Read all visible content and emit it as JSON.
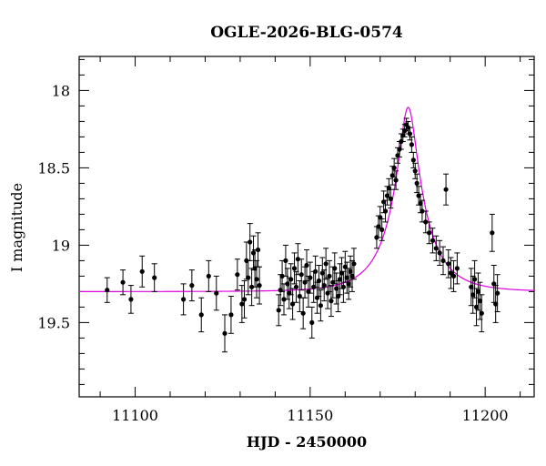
{
  "chart_data": {
    "type": "scatter",
    "title": "OGLE-2026-BLG-0574",
    "xlabel": "HJD - 2450000",
    "ylabel": "I magnitude",
    "xlim": [
      11084,
      11214
    ],
    "ylim": [
      19.98,
      17.78
    ],
    "y_inverted": true,
    "x_ticks": [
      11100,
      11150,
      11200
    ],
    "y_ticks": [
      18,
      18.5,
      19,
      19.5
    ],
    "grid": false,
    "colors": {
      "points": "#000000",
      "model": "#e000e0"
    },
    "model": {
      "type": "line",
      "t0": 11178.0,
      "tE": 11.0,
      "u0": 0.22,
      "baseline": 19.3,
      "blend_fraction": 0.55
    },
    "series": [
      {
        "type": "scatter_errorbar",
        "x": [
          11092.0,
          11096.5,
          11098.8,
          11102.0,
          11105.5,
          11113.8,
          11116.2,
          11118.9,
          11121.0,
          11123.2,
          11125.6,
          11127.4,
          11129.2,
          11130.5,
          11131.2,
          11131.8,
          11132.3,
          11132.8,
          11133.3,
          11133.8,
          11134.2,
          11134.7,
          11135.1,
          11135.5,
          11141.0,
          11141.5,
          11142.0,
          11142.5,
          11143.0,
          11143.5,
          11144.0,
          11144.5,
          11145.0,
          11145.5,
          11146.0,
          11146.5,
          11147.0,
          11147.5,
          11148.0,
          11148.5,
          11149.0,
          11149.5,
          11150.0,
          11150.5,
          11151.0,
          11151.5,
          11152.0,
          11152.5,
          11153.0,
          11153.5,
          11154.0,
          11154.5,
          11155.0,
          11155.5,
          11156.0,
          11156.5,
          11157.0,
          11157.5,
          11158.0,
          11158.5,
          11159.0,
          11159.5,
          11160.0,
          11160.5,
          11161.0,
          11161.5,
          11162.0,
          11162.5,
          11169.0,
          11169.5,
          11170.0,
          11170.5,
          11171.0,
          11171.5,
          11172.0,
          11172.5,
          11173.0,
          11173.5,
          11174.0,
          11174.5,
          11175.0,
          11175.5,
          11176.0,
          11176.5,
          11177.0,
          11177.5,
          11178.0,
          11178.5,
          11179.0,
          11179.5,
          11180.0,
          11180.5,
          11181.0,
          11181.5,
          11182.0,
          11183.0,
          11184.0,
          11185.0,
          11186.0,
          11187.0,
          11188.0,
          11188.8,
          11189.5,
          11190.2,
          11191.0,
          11192.0,
          11196.0,
          11196.5,
          11197.0,
          11197.5,
          11198.0,
          11198.5,
          11199.0,
          11202.0,
          11202.5,
          11203.0,
          11203.5
        ],
        "y": [
          19.29,
          19.24,
          19.35,
          19.17,
          19.21,
          19.35,
          19.26,
          19.45,
          19.2,
          19.31,
          19.57,
          19.45,
          19.19,
          19.38,
          19.35,
          19.1,
          19.21,
          18.98,
          19.27,
          19.05,
          19.15,
          19.22,
          19.03,
          19.26,
          19.42,
          19.29,
          19.2,
          19.35,
          19.1,
          19.25,
          19.31,
          19.22,
          19.38,
          19.15,
          19.27,
          19.09,
          19.33,
          19.19,
          19.44,
          19.24,
          19.13,
          19.3,
          19.21,
          19.5,
          19.27,
          19.17,
          19.34,
          19.23,
          19.39,
          19.18,
          19.26,
          19.12,
          19.31,
          19.2,
          19.36,
          19.24,
          19.15,
          19.28,
          19.33,
          19.22,
          19.18,
          19.27,
          19.14,
          19.21,
          19.25,
          19.17,
          19.2,
          19.12,
          18.95,
          18.88,
          18.82,
          18.9,
          18.72,
          18.78,
          18.68,
          18.63,
          18.7,
          18.55,
          18.5,
          18.58,
          18.42,
          18.38,
          18.33,
          18.29,
          18.26,
          18.22,
          18.24,
          18.28,
          18.35,
          18.45,
          18.52,
          18.6,
          18.68,
          18.73,
          18.78,
          18.85,
          18.92,
          18.97,
          19.02,
          19.05,
          19.1,
          18.64,
          19.12,
          19.18,
          19.2,
          19.15,
          19.27,
          19.32,
          19.22,
          19.4,
          19.3,
          19.36,
          19.44,
          18.92,
          19.25,
          19.38,
          19.31
        ],
        "err": [
          0.08,
          0.08,
          0.09,
          0.1,
          0.09,
          0.1,
          0.1,
          0.11,
          0.1,
          0.11,
          0.12,
          0.12,
          0.1,
          0.12,
          0.12,
          0.12,
          0.11,
          0.12,
          0.12,
          0.11,
          0.12,
          0.12,
          0.11,
          0.12,
          0.1,
          0.1,
          0.1,
          0.1,
          0.1,
          0.1,
          0.1,
          0.1,
          0.1,
          0.1,
          0.1,
          0.1,
          0.1,
          0.1,
          0.1,
          0.1,
          0.1,
          0.1,
          0.1,
          0.1,
          0.1,
          0.1,
          0.1,
          0.1,
          0.1,
          0.1,
          0.1,
          0.1,
          0.1,
          0.1,
          0.1,
          0.1,
          0.1,
          0.1,
          0.1,
          0.1,
          0.1,
          0.1,
          0.1,
          0.1,
          0.1,
          0.1,
          0.1,
          0.1,
          0.07,
          0.07,
          0.07,
          0.07,
          0.07,
          0.07,
          0.06,
          0.06,
          0.06,
          0.06,
          0.06,
          0.06,
          0.05,
          0.05,
          0.05,
          0.04,
          0.04,
          0.04,
          0.04,
          0.04,
          0.05,
          0.05,
          0.05,
          0.06,
          0.06,
          0.06,
          0.07,
          0.07,
          0.07,
          0.08,
          0.08,
          0.08,
          0.09,
          0.1,
          0.09,
          0.1,
          0.1,
          0.1,
          0.12,
          0.12,
          0.12,
          0.12,
          0.12,
          0.12,
          0.12,
          0.12,
          0.12,
          0.12,
          0.12
        ]
      }
    ]
  }
}
